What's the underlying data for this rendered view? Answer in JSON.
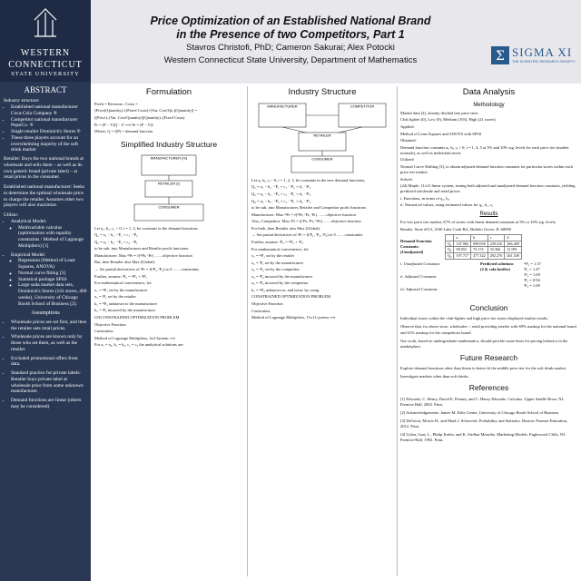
{
  "header": {
    "title_line1": "Price Optimization of an Established National Brand",
    "title_line2": "in the Presence of two Competitors, Part 1",
    "authors": "Stavros Christofi, PhD; Cameron Sakurai; Alex Potocki",
    "affiliation": "Western Connecticut State University, Department of Mathematics"
  },
  "logos": {
    "left": [
      "WESTERN",
      "CONNECTICUT",
      "STATE UNIVERSITY"
    ],
    "right_name": "SIGMA XI",
    "right_tagline": "THE SCIENTIFIC RESEARCH SOCIETY"
  },
  "abstract": {
    "heading": "ABSTRACT",
    "industry": {
      "label": "Industry structure:",
      "bullets": [
        "Established national manufacturer Coca-Cola Company ®",
        "Competitor national manufacturer PepsiCo. ®",
        "Single retailer Dominick's Stores ®",
        "These three players account for an overwhelming majority of the soft drink market"
      ]
    },
    "paragraphs": [
      "Retailer: Buys the two national brands at wholesale and sells them – as well as its own generic brand (private label) – at retail prices to the consumer.",
      "Established national manufacturer: Seeks to determine the optimal wholesale price to charge the retailer. Assumes other two players will also maximize."
    ],
    "utilize": {
      "label": "Utilize:",
      "items": [
        {
          "label": "Analytical Model:",
          "sub": [
            "Multivariable calculus (optimization with equality constraints / Method of Lagrange Multipliers) [1]"
          ]
        },
        {
          "label": "Empirical Model:",
          "sub": [
            "Regression (Method of Least Squares, ANOVA)",
            "Normal curve fitting [3]",
            "Statistical package SPSS",
            "Large soda market data sets, Dominick's Stores (141 stores, 400 weeks), University of Chicago Booth School of Business [2]."
          ]
        }
      ]
    },
    "assumptions": {
      "heading": "Assumptions",
      "bullets": [
        "Wholesale prices are set first, and then the retailer sets retail prices.",
        "Wholesale prices are known only by those who set them, as well as the retailer.",
        "Excluded promotional offers from data.",
        "Standard practice for private labels: Retailer buys private label at wholesale price from some unknown manufacturer.",
        "Demand functions are linear (others may be considered)"
      ]
    }
  },
  "formulation": {
    "heading": "Formulation",
    "lines": [
      "Profit = Revenue– Costs =",
      "(Price)(Quantity)–[(Fixed Costs)+(Var. Cost/Qu.)(Quantity)] =",
      "[(Price)–(Var. Cost/Quantity)](Quantity)–(Fixed Costs)",
      "Pr = (P − V)Q − F  ⟹  Pr = (P − V)f",
      "Where, Q = f(P) = demand function"
    ]
  },
  "simplified": {
    "heading": "Simplified Industry Structure",
    "diagram": [
      "MANUFACTURER (m)",
      "RETAILER (r)",
      "CONSUMER"
    ],
    "lines": [
      "Let a₁, b₁, c₁ > 0, i = 1, 2, be constants in the demand functions.",
      "Q₁ = a₁ − b₁ · ʳP₁ + c₁ · ʳP₂",
      "Q₂ = a₂ − b₂ · ʳP₂ + c₂ · ʳP₁",
      "to be sub. into Manufacturer and Retailer profit functions:",
      "Manufacturer: Max ᵐPr = f(ᵐPr, ʳPr) ........objective function",
      "But, then Retailer also Max (Global):",
      "→ Set partial derivatives of ʳPr = f(ʳP₁, ʳP₂) to 0 ........constraints",
      "Further, assume: ʳP₂ = ᵐP₂ + ᵐP₁",
      "For mathematical convenience, let:",
      "x₁ = ᵐP₁    set by the manufacturer",
      "x₂ = ʳP₁    set by the retailer",
      "k₁ = ᵐP₂    unknown to the manufacturer",
      "k₂ = ʳP₂    incurred by the manufacturer",
      "UNCONSTRAINED OPTIMIZATION PROBLEM",
      "Objective Function",
      "Constraints",
      "Method of Lagrange Multipliers, 3x3 System ⟹",
      "For a₁ = a₂, b₁ = b₂, c₁ = c₂ the analytical solutions are:"
    ]
  },
  "industry": {
    "heading": "Industry Structure",
    "diagram": [
      "MANUFACTURER",
      "COMPETITOR",
      "RETAILER",
      "CONSUMER"
    ],
    "lines": [
      "Let aᵢ, bᵢ, cᵢ > 0, i = 1, 2, 3, be constants in the new demand functions,",
      "Q₁ = a₁ − b₁ · ʳP₁ + c₁ · ʳP₂ + d₁ · ʳP₃",
      "Q₂ = a₂ − b₂ · ʳP₂ + c₂ · ʳP₁ + d₂ · ʳP₃",
      "Q₃ = a₃ − b₃ · ʳP₃ + c₃ · ʳP₁ + d₃ · ʳP₂",
      "to be sub. into Manufacturer, Retailer and Competitor profit functions:",
      "Manufacturer: Max ᵐPr = f(ᵐPr, ʳPr, ᶜPr) ........objective function",
      "Also, Competitor: Max ᶜPr = f(ᶜPr, ʳPr, ᵐPr) ........objective function",
      "For both, then Retailer also Max (Global):",
      "→ Set partial derivatives of ʳPr = f(ʳP₁, ʳP₂, ʳP₃) to 0 ........constraints",
      "Further, assume: ʳP₃ = ᵐP₃ + ᶜP₃",
      "For mathematical convenience, let:",
      "x₁ = ᵐP₁    set by the retailer",
      "x₂ = ʳP₁    set by the manufacturer",
      "x₃ = ᶜP₂    set by the competitor",
      "x₄ = ʳP₂    incurred by the manufacturer",
      "x₅ = ʳP₃    incurred by the competitor",
      "k₁ = ᵐP₃    unknown to, and incur. by comp.",
      "CONSTRAINED OPTIMIZATION PROBLEM",
      "Objective Function",
      "Constraints",
      "Method of Lagrange Multipliers, 11x11 system ⟹"
    ]
  },
  "data_analysis": {
    "heading": "Data Analysis",
    "methodology": {
      "heading": "Methodology",
      "lines": [
        "Market data [2], already divided into price tiers:",
        "Club lighter (0), Low (9), Medium (103), High (21 stores)",
        "Applied:",
        "Method of Least Squares and ANOVA with SPSS",
        "Obtained:",
        "Demand function constants aᵢ, bᵢ, cᵢ > 0, i = 1, 4, 5 at 5% and 10% sig. levels for each price tier (market normals), as well as individual stores",
        "Utilized:",
        "Normal Curve Shifting [3], to obtain adjusted demand function constants for particular stores within each price tier market",
        "Solved:",
        "(2d) Maple: 11x11 linear system, testing both adjusted and unadjusted demand function constants, yielding predicted wholesale and retail prices",
        "i.   Functions, in terms of q₁, b₂",
        "ii.  Numerical values, using estimated values for q₁, b₁, c₁"
      ]
    },
    "results": {
      "heading": "Results",
      "lines": [
        "For low price tier market, 67% of stores with linear demand constants at 5% or 10% sig. levels.",
        "Results: Store #112, 2160 Lake Cook Rd., Buffalo Grove, IL 60090"
      ],
      "table_label": "Demand Function Constants: (Unadjusted)",
      "table": [
        [
          "",
          "a",
          "b",
          "c",
          "d"
        ],
        [
          "Q₁",
          "147.982",
          "699.058",
          "239.416",
          "266.409"
        ],
        [
          "Q₂",
          "99.052",
          "73.174",
          "33.366",
          "21.991"
        ],
        [
          "Q₃",
          "197.717",
          "477.322",
          "292.276",
          "261.549"
        ]
      ],
      "notes": [
        "i. Unadjusted Constants",
        "ii. Adjusted Constants",
        "iii. Adjusted Constants"
      ],
      "predicted_label": "Predicted solutions (2 & cola bottles)",
      "predicted": [
        "ᵐP₁ = 1.37",
        "ʳP₁ = 1.47",
        "ᶜP₂ = 1.69",
        "ʳP₂ = 0.94",
        "ʳP₃ = 1.09"
      ]
    },
    "conclusion": {
      "heading": "Conclusion",
      "lines": [
        "Individual stores within the club-lighter and high price tier stores displayed similar results.",
        "Observe that, for above store, wholesaler < retail providing retailer with 69% markup for the national brand and 61% markup for the competitors brand.",
        "Our work, based on undergraduate mathematics, should provide some basis for pricing behavior in the marketplace."
      ]
    },
    "future": {
      "heading": "Future Research",
      "lines": [
        "Explore demand functions other than linear to better fit the middle price tier for the soft drink market.",
        "Investigate markets other than soft drinks."
      ]
    },
    "references": {
      "heading": "References",
      "lines": [
        "[1]  Edwards, C. Henry, David E. Penney, and C. Henry Edwards. Calculus. Upper Saddle River, NJ: Prentice Hall, 2002. Print.",
        "[2]  Acknowledgements: James M. Kilts Center, University of Chicago Booth School of Business",
        "[3]  DeGroot, Morris H., and Mark J. Schervish. Probability and Statistics. Boston: Pearson Education, 2012. Print.",
        "[4]  Lilien, Gary L., Philip Kotler, and K. Sridhar Moorthy. Marketing Models. Englewood Cliffs, NJ: Prentice-Hall, 1992. Print."
      ]
    }
  }
}
